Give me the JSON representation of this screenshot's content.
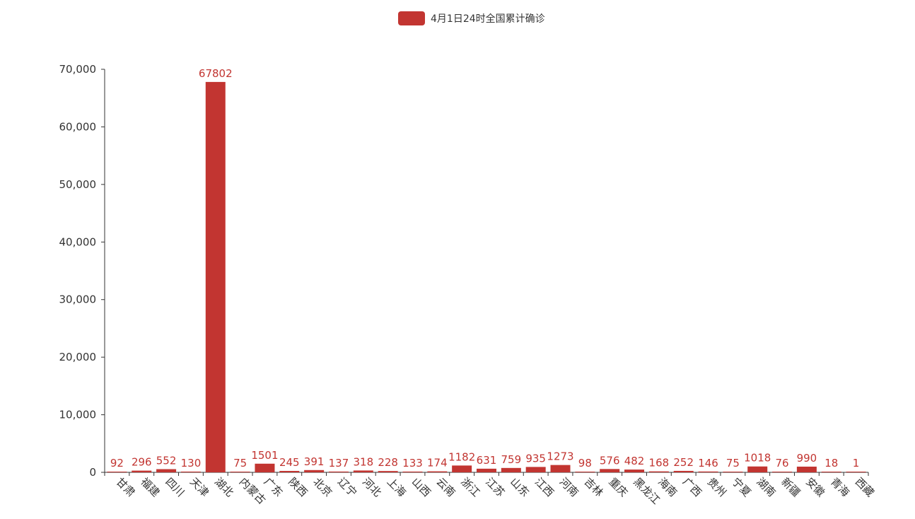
{
  "chart_data": {
    "type": "bar",
    "legend": {
      "label": "4月1日24时全国累计确诊",
      "position": "top-center"
    },
    "series": [
      {
        "name": "4月1日24时全国累计确诊",
        "color": "#c23531",
        "values": [
          92,
          296,
          552,
          130,
          67802,
          75,
          1501,
          245,
          391,
          137,
          318,
          228,
          133,
          174,
          1182,
          631,
          759,
          935,
          1273,
          98,
          576,
          482,
          168,
          252,
          146,
          75,
          1018,
          76,
          990,
          18,
          1
        ]
      }
    ],
    "categories": [
      "甘肃",
      "福建",
      "四川",
      "天津",
      "湖北",
      "内蒙古",
      "广东",
      "陕西",
      "北京",
      "辽宁",
      "河北",
      "上海",
      "山西",
      "云南",
      "浙江",
      "江苏",
      "山东",
      "江西",
      "河南",
      "吉林",
      "重庆",
      "黑龙江",
      "海南",
      "广西",
      "贵州",
      "宁夏",
      "湖南",
      "新疆",
      "安徽",
      "青海",
      "西藏"
    ],
    "y_ticks": [
      "0",
      "10,000",
      "20,000",
      "30,000",
      "40,000",
      "50,000",
      "60,000",
      "70,000"
    ],
    "ylim": [
      0,
      70000
    ],
    "grid": false
  }
}
